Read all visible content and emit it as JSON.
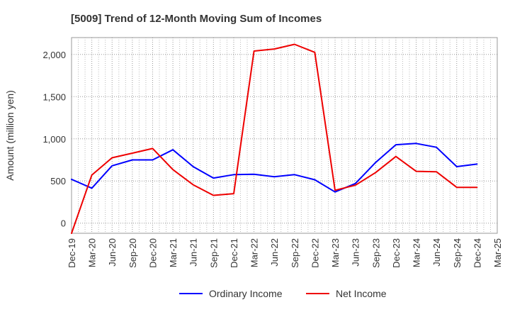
{
  "chart_data": {
    "type": "line",
    "title": "[5009]  Trend of 12-Month Moving Sum of Incomes",
    "xlabel": "",
    "ylabel": "Amount (million yen)",
    "ylim": [
      -120,
      2200
    ],
    "yticks": [
      0,
      500,
      1000,
      1500,
      2000
    ],
    "ytick_labels": [
      "0",
      "500",
      "1,000",
      "1,500",
      "2,000"
    ],
    "categories": [
      "Dec-19",
      "Mar-20",
      "Jun-20",
      "Sep-20",
      "Dec-20",
      "Mar-21",
      "Jun-21",
      "Sep-21",
      "Dec-21",
      "Mar-22",
      "Jun-22",
      "Sep-22",
      "Dec-22",
      "Mar-23",
      "Jun-23",
      "Sep-23",
      "Dec-23",
      "Mar-24",
      "Jun-24",
      "Sep-24",
      "Dec-24",
      "Mar-25"
    ],
    "grid": true,
    "legend_position": "bottom-center",
    "series": [
      {
        "name": "Ordinary Income",
        "color": "#0000ff",
        "values": [
          520,
          415,
          680,
          750,
          750,
          870,
          670,
          535,
          575,
          580,
          550,
          575,
          515,
          370,
          470,
          720,
          930,
          945,
          900,
          670,
          700,
          null
        ]
      },
      {
        "name": "Net Income",
        "color": "#ee0000",
        "values": [
          -120,
          570,
          775,
          830,
          885,
          635,
          455,
          330,
          350,
          2040,
          2065,
          2120,
          2025,
          390,
          450,
          600,
          790,
          615,
          610,
          425,
          425,
          null
        ]
      }
    ]
  }
}
